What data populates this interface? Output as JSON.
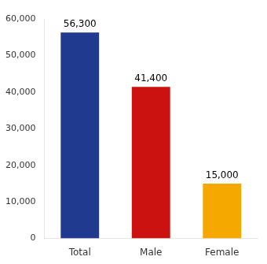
{
  "chart_data": {
    "type": "bar",
    "categories": [
      "Total",
      "Male",
      "Female"
    ],
    "values": [
      56300,
      41400,
      15000
    ],
    "value_labels": [
      "56,300",
      "41,400",
      "15,000"
    ],
    "data_labels": true,
    "colors": [
      "#1f3a8f",
      "#cc1111",
      "#f5a800"
    ],
    "ylim": [
      0,
      60000
    ],
    "yticks": [
      0,
      {
        "value": 10000,
        "label": "10,000"
      },
      {
        "value": 20000,
        "label": "20,000"
      },
      {
        "value": 30000,
        "label": "30,000"
      },
      {
        "value": 40000,
        "label": "40,000"
      },
      {
        "value": 50000,
        "label": "50,000"
      },
      {
        "value": 60000,
        "label": "60,000"
      }
    ],
    "grid": false
  }
}
